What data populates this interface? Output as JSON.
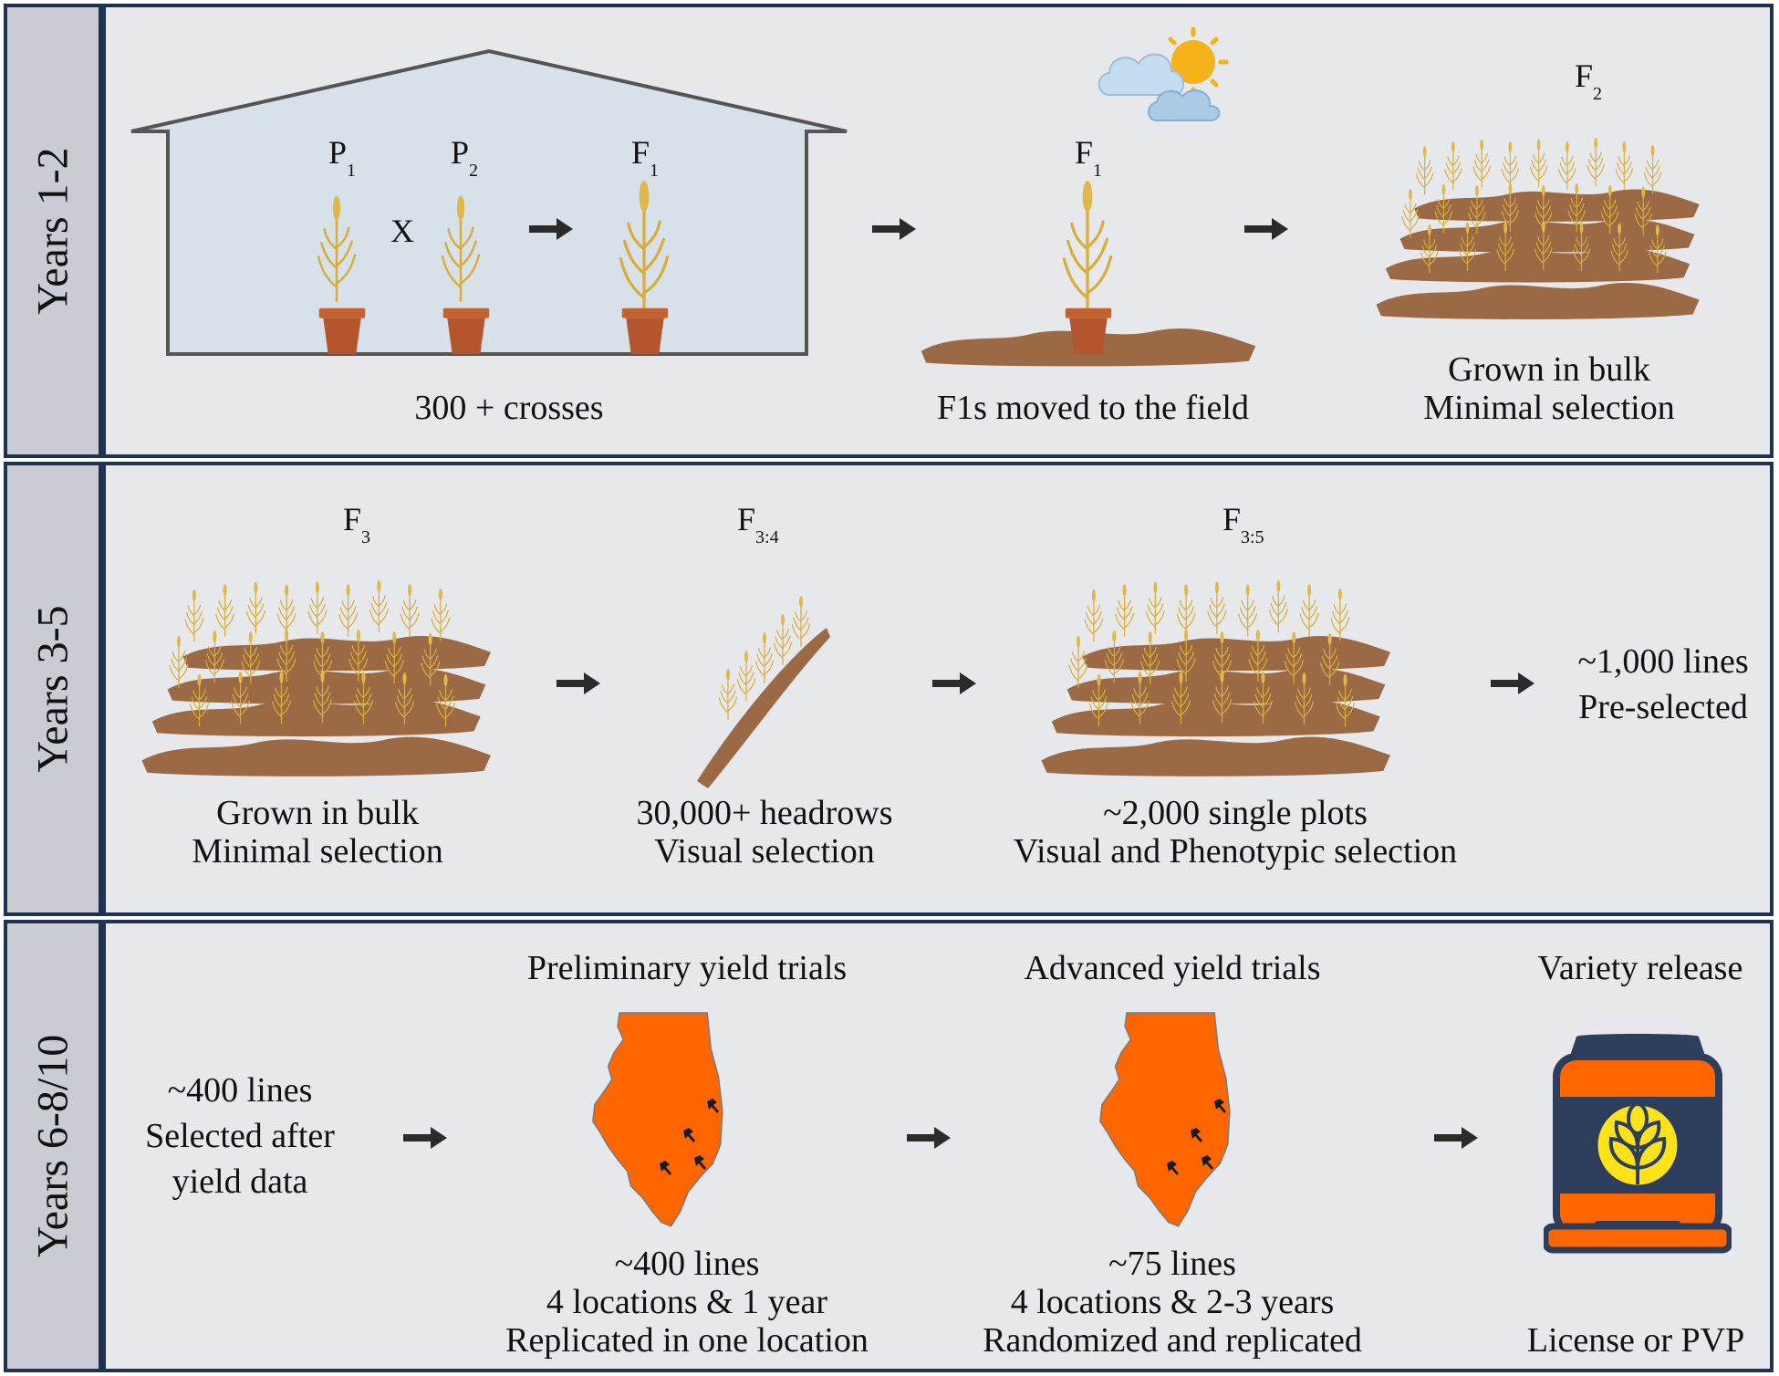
{
  "panels": [
    {
      "band": "Years 1-2",
      "labels": {
        "p1": "P",
        "p1_sub": "1",
        "x": "X",
        "p2": "P",
        "p2_sub": "2",
        "f1a": "F",
        "f1a_sub": "1",
        "f1b": "F",
        "f1b_sub": "1",
        "f2": "F",
        "f2_sub": "2"
      },
      "captions": {
        "greenhouse": "300 + crosses",
        "field": "F1s moved to the field",
        "bulk_1": "Grown in bulk",
        "bulk_2": "Minimal selection"
      }
    },
    {
      "band": "Years 3-5",
      "labels": {
        "f3": "F",
        "f3_sub": "3",
        "f34": "F",
        "f34_sub": "3:4",
        "f35": "F",
        "f35_sub": "3:5"
      },
      "captions": {
        "bulk_1": "Grown in bulk",
        "bulk_2": "Minimal selection",
        "head_1": "30,000+ headrows",
        "head_2": "Visual selection",
        "plots_1": "~2,000 single plots",
        "plots_2": "Visual and Phenotypic selection",
        "lines_1": "~1,000 lines",
        "lines_2": "Pre-selected"
      }
    },
    {
      "band": "Years 6-8/10",
      "captions": {
        "sel_1": "~400 lines",
        "sel_2": "Selected after",
        "sel_3": "yield data",
        "pyt_title": "Preliminary yield trials",
        "pyt_1": "~400 lines",
        "pyt_2": "4 locations & 1 year",
        "pyt_3": "Replicated in one location",
        "ayt_title": "Advanced yield trials",
        "ayt_1": "~75 lines",
        "ayt_2": "4 locations & 2-3 years",
        "ayt_3": "Randomized and replicated",
        "rel_title": "Variety release",
        "rel_1": "License or PVP"
      }
    }
  ],
  "colors": {
    "border": "#1f3350",
    "band": "#c9ccd2",
    "panel": "#e6e8ec",
    "soil": "#9b6a44",
    "wheat": "#e0b84a",
    "pot": "#b4552d",
    "illinois": "#ff6600",
    "bag_navy": "#2c3e5c"
  },
  "icons": [
    "greenhouse-icon",
    "wheat-plant-icon",
    "pot-icon",
    "sun-cloud-icon",
    "field-plot-icon",
    "headrow-icon",
    "illinois-map-icon",
    "location-pin-icon",
    "seed-bag-icon",
    "arrow-right-icon"
  ]
}
